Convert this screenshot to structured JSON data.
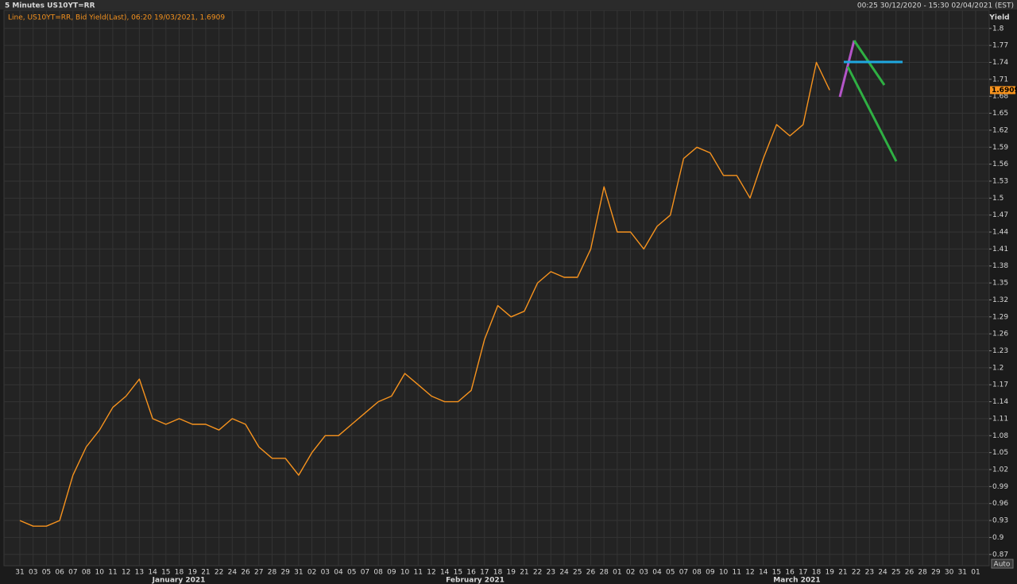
{
  "chart_data": {
    "type": "line",
    "title": "5 Minutes US10YT=RR",
    "subtitle": "00:25 30/12/2020 - 15:30 02/04/2021 (EST)",
    "legend_text": "Line, US10YT=RR, Bid Yield(Last), 06:20 19/03/2021, 1.6909",
    "y_label": "Yield",
    "scale_mode": "Auto",
    "month_labels": [
      "January 2021",
      "February 2021",
      "March 2021"
    ],
    "categories": [
      "31",
      "03",
      "05",
      "06",
      "07",
      "08",
      "10",
      "11",
      "12",
      "13",
      "14",
      "15",
      "18",
      "19",
      "21",
      "22",
      "24",
      "26",
      "27",
      "28",
      "29",
      "31",
      "02",
      "03",
      "04",
      "05",
      "07",
      "08",
      "09",
      "10",
      "11",
      "12",
      "14",
      "15",
      "16",
      "17",
      "18",
      "19",
      "21",
      "22",
      "23",
      "24",
      "25",
      "26",
      "28",
      "01",
      "02",
      "03",
      "04",
      "05",
      "07",
      "08",
      "09",
      "10",
      "11",
      "12",
      "14",
      "15",
      "16",
      "17",
      "18",
      "19",
      "21",
      "22",
      "23",
      "24",
      "25",
      "26",
      "28",
      "29",
      "30",
      "31",
      "01"
    ],
    "series": [
      {
        "name": "US10YT=RR",
        "color": "#f7931e",
        "values": [
          0.93,
          0.92,
          0.92,
          0.93,
          1.01,
          1.06,
          1.09,
          1.13,
          1.15,
          1.18,
          1.11,
          1.1,
          1.11,
          1.1,
          1.1,
          1.09,
          1.11,
          1.1,
          1.06,
          1.04,
          1.04,
          1.01,
          1.05,
          1.08,
          1.08,
          1.1,
          1.12,
          1.14,
          1.15,
          1.19,
          1.17,
          1.15,
          1.14,
          1.14,
          1.16,
          1.25,
          1.31,
          1.29,
          1.3,
          1.35,
          1.37,
          1.36,
          1.36,
          1.41,
          1.52,
          1.44,
          1.44,
          1.41,
          1.45,
          1.47,
          1.57,
          1.59,
          1.58,
          1.54,
          1.54,
          1.5,
          1.57,
          1.63,
          1.61,
          1.63,
          1.74,
          1.6909,
          null,
          null,
          null,
          null,
          null,
          null,
          null,
          null,
          null,
          null,
          null
        ]
      }
    ],
    "ylim": [
      0.85,
      1.832
    ],
    "yticks": [
      1.8,
      1.77,
      1.74,
      1.71,
      1.68,
      1.65,
      1.62,
      1.59,
      1.56,
      1.53,
      1.5,
      1.47,
      1.44,
      1.41,
      1.38,
      1.35,
      1.32,
      1.29,
      1.26,
      1.23,
      1.2,
      1.17,
      1.14,
      1.11,
      1.08,
      1.05,
      1.02,
      0.99,
      0.96,
      0.93,
      0.9,
      0.87
    ],
    "grid": true
  }
}
